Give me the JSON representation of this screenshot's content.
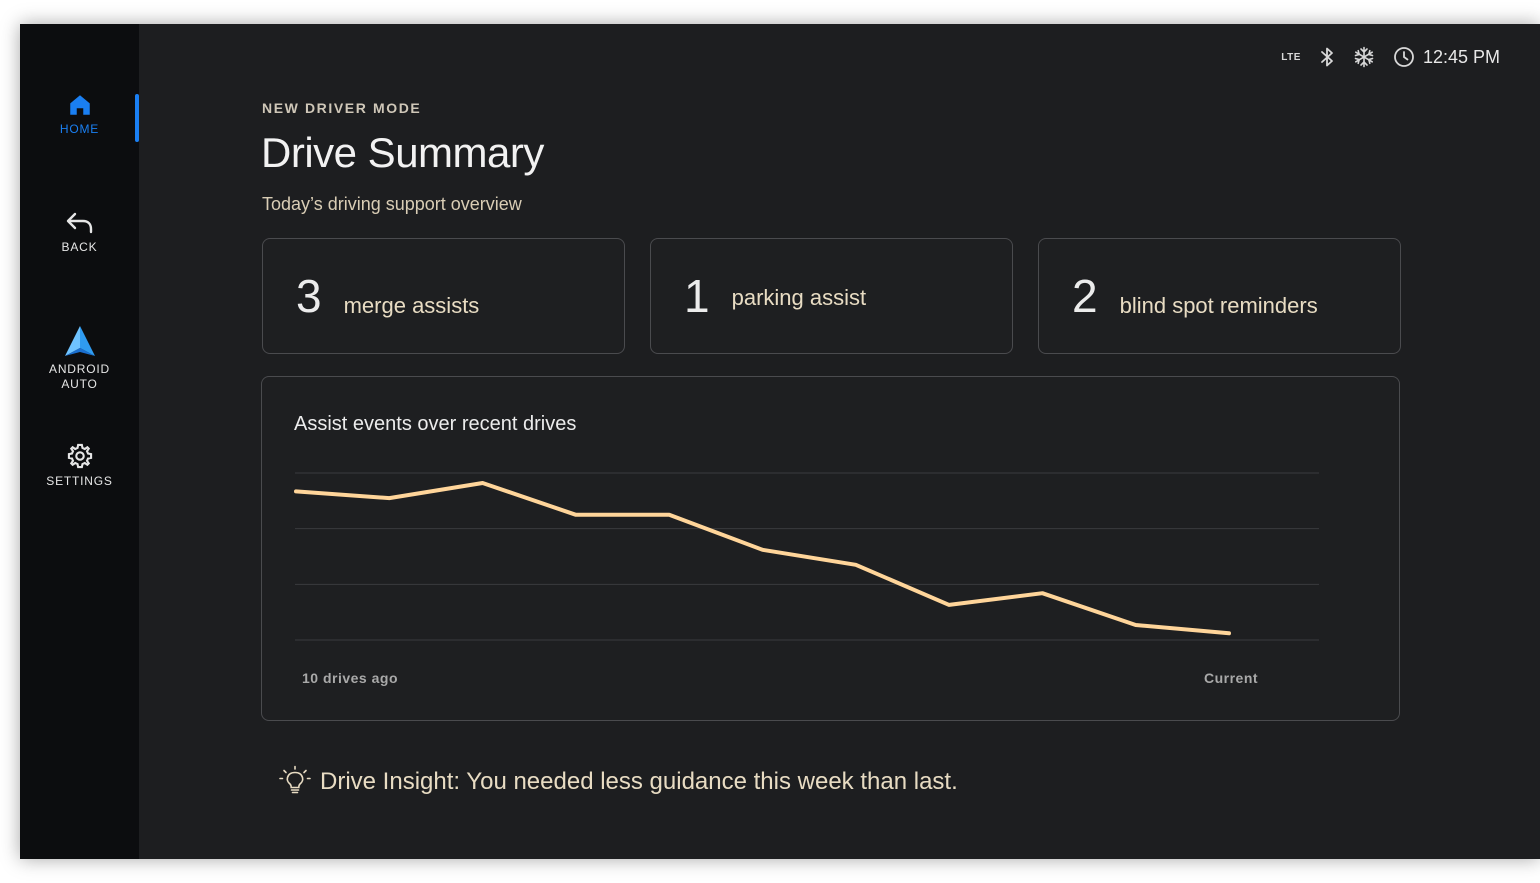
{
  "sidebar": {
    "items": [
      {
        "label": "HOME",
        "icon": "home-icon"
      },
      {
        "label": "BACK",
        "icon": "back-arrow-icon"
      },
      {
        "label_line1": "ANDROID",
        "label_line2": "AUTO",
        "icon": "android-auto-icon"
      },
      {
        "label": "SETTINGS",
        "icon": "gear-icon"
      }
    ],
    "active_color": "#1a7ff2"
  },
  "status_bar": {
    "network": "LTE",
    "icons": [
      "bluetooth-icon",
      "climate-snowflake-icon",
      "clock-icon"
    ],
    "time": "12:45 PM"
  },
  "header": {
    "eyebrow": "NEW DRIVER MODE",
    "title": "Drive Summary",
    "subtitle": "Today’s driving support overview"
  },
  "stats": [
    {
      "value": "3",
      "label": "merge assists"
    },
    {
      "value": "1",
      "label": "parking assist"
    },
    {
      "value": "2",
      "label": "blind spot reminders"
    }
  ],
  "chart_data": {
    "type": "line",
    "title": "Assist events over recent drives",
    "x_labels": [
      "10 drives ago",
      "Current"
    ],
    "series": [
      {
        "values": [
          8.5,
          8.1,
          9.0,
          7.1,
          7.1,
          5.0,
          4.1,
          1.7,
          2.4,
          0.5,
          0.0
        ],
        "color": "#ffd59a"
      }
    ],
    "ylim": [
      -0.4,
      9.6
    ],
    "grid": true
  },
  "insight": {
    "icon": "lightbulb-icon",
    "text": "Drive Insight: You needed less guidance this week than last."
  }
}
